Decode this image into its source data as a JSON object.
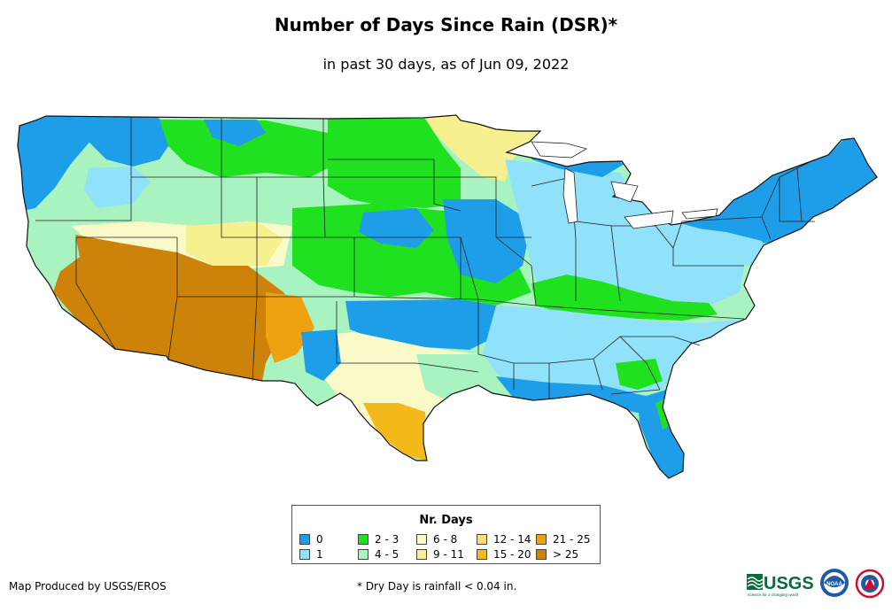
{
  "header": {
    "title": "Number of Days Since Rain (DSR)*",
    "subtitle": "in past 30 days, as of Jun 09, 2022"
  },
  "legend": {
    "title": "Nr. Days",
    "items": [
      {
        "label": "0",
        "color": "#1e9ee8"
      },
      {
        "label": "1",
        "color": "#8fe2f9"
      },
      {
        "label": "2 - 3",
        "color": "#1fe11f"
      },
      {
        "label": "4 - 5",
        "color": "#a8f3c0"
      },
      {
        "label": "6 - 8",
        "color": "#fafac8"
      },
      {
        "label": "9 - 11",
        "color": "#f6f08e"
      },
      {
        "label": "12 - 14",
        "color": "#f6de78"
      },
      {
        "label": "15 - 20",
        "color": "#f4ba1c"
      },
      {
        "label": "21 - 25",
        "color": "#eea212"
      },
      {
        "label": "> 25",
        "color": "#cd820a"
      }
    ]
  },
  "footer": {
    "producer": "Map Produced by USGS/EROS",
    "note": "* Dry Day is rainfall < 0.04 in."
  },
  "logos": {
    "usgs_text": "USGS",
    "usgs_tagline": "science for a changing world",
    "noaa_text": "NOAA"
  },
  "colors": {
    "state_border": "#222222",
    "background": "#ffffff"
  }
}
